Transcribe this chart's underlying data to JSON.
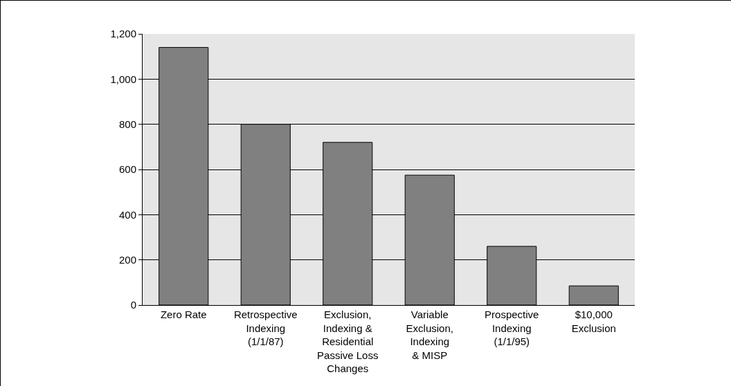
{
  "chart_data": {
    "type": "bar",
    "categories": [
      "Zero Rate",
      "Retrospective\nIndexing\n(1/1/87)",
      "Exclusion,\nIndexing &\nResidential\nPassive Loss\nChanges",
      "Variable\nExclusion,\nIndexing\n& MISP",
      "Prospective\nIndexing\n(1/1/95)",
      "$10,000\nExclusion"
    ],
    "values": [
      1140,
      800,
      720,
      575,
      260,
      85
    ],
    "color": "#808080",
    "ylim": [
      0,
      1200
    ],
    "yticks": [
      0,
      {
        "value": 200,
        "label": "200"
      },
      {
        "value": 400,
        "label": "400"
      },
      {
        "value": 600,
        "label": "600"
      },
      {
        "value": 800,
        "label": "800"
      },
      {
        "value": 1000,
        "label": "1,000"
      },
      {
        "value": 1200,
        "label": "1,200"
      }
    ],
    "grid": "y"
  }
}
